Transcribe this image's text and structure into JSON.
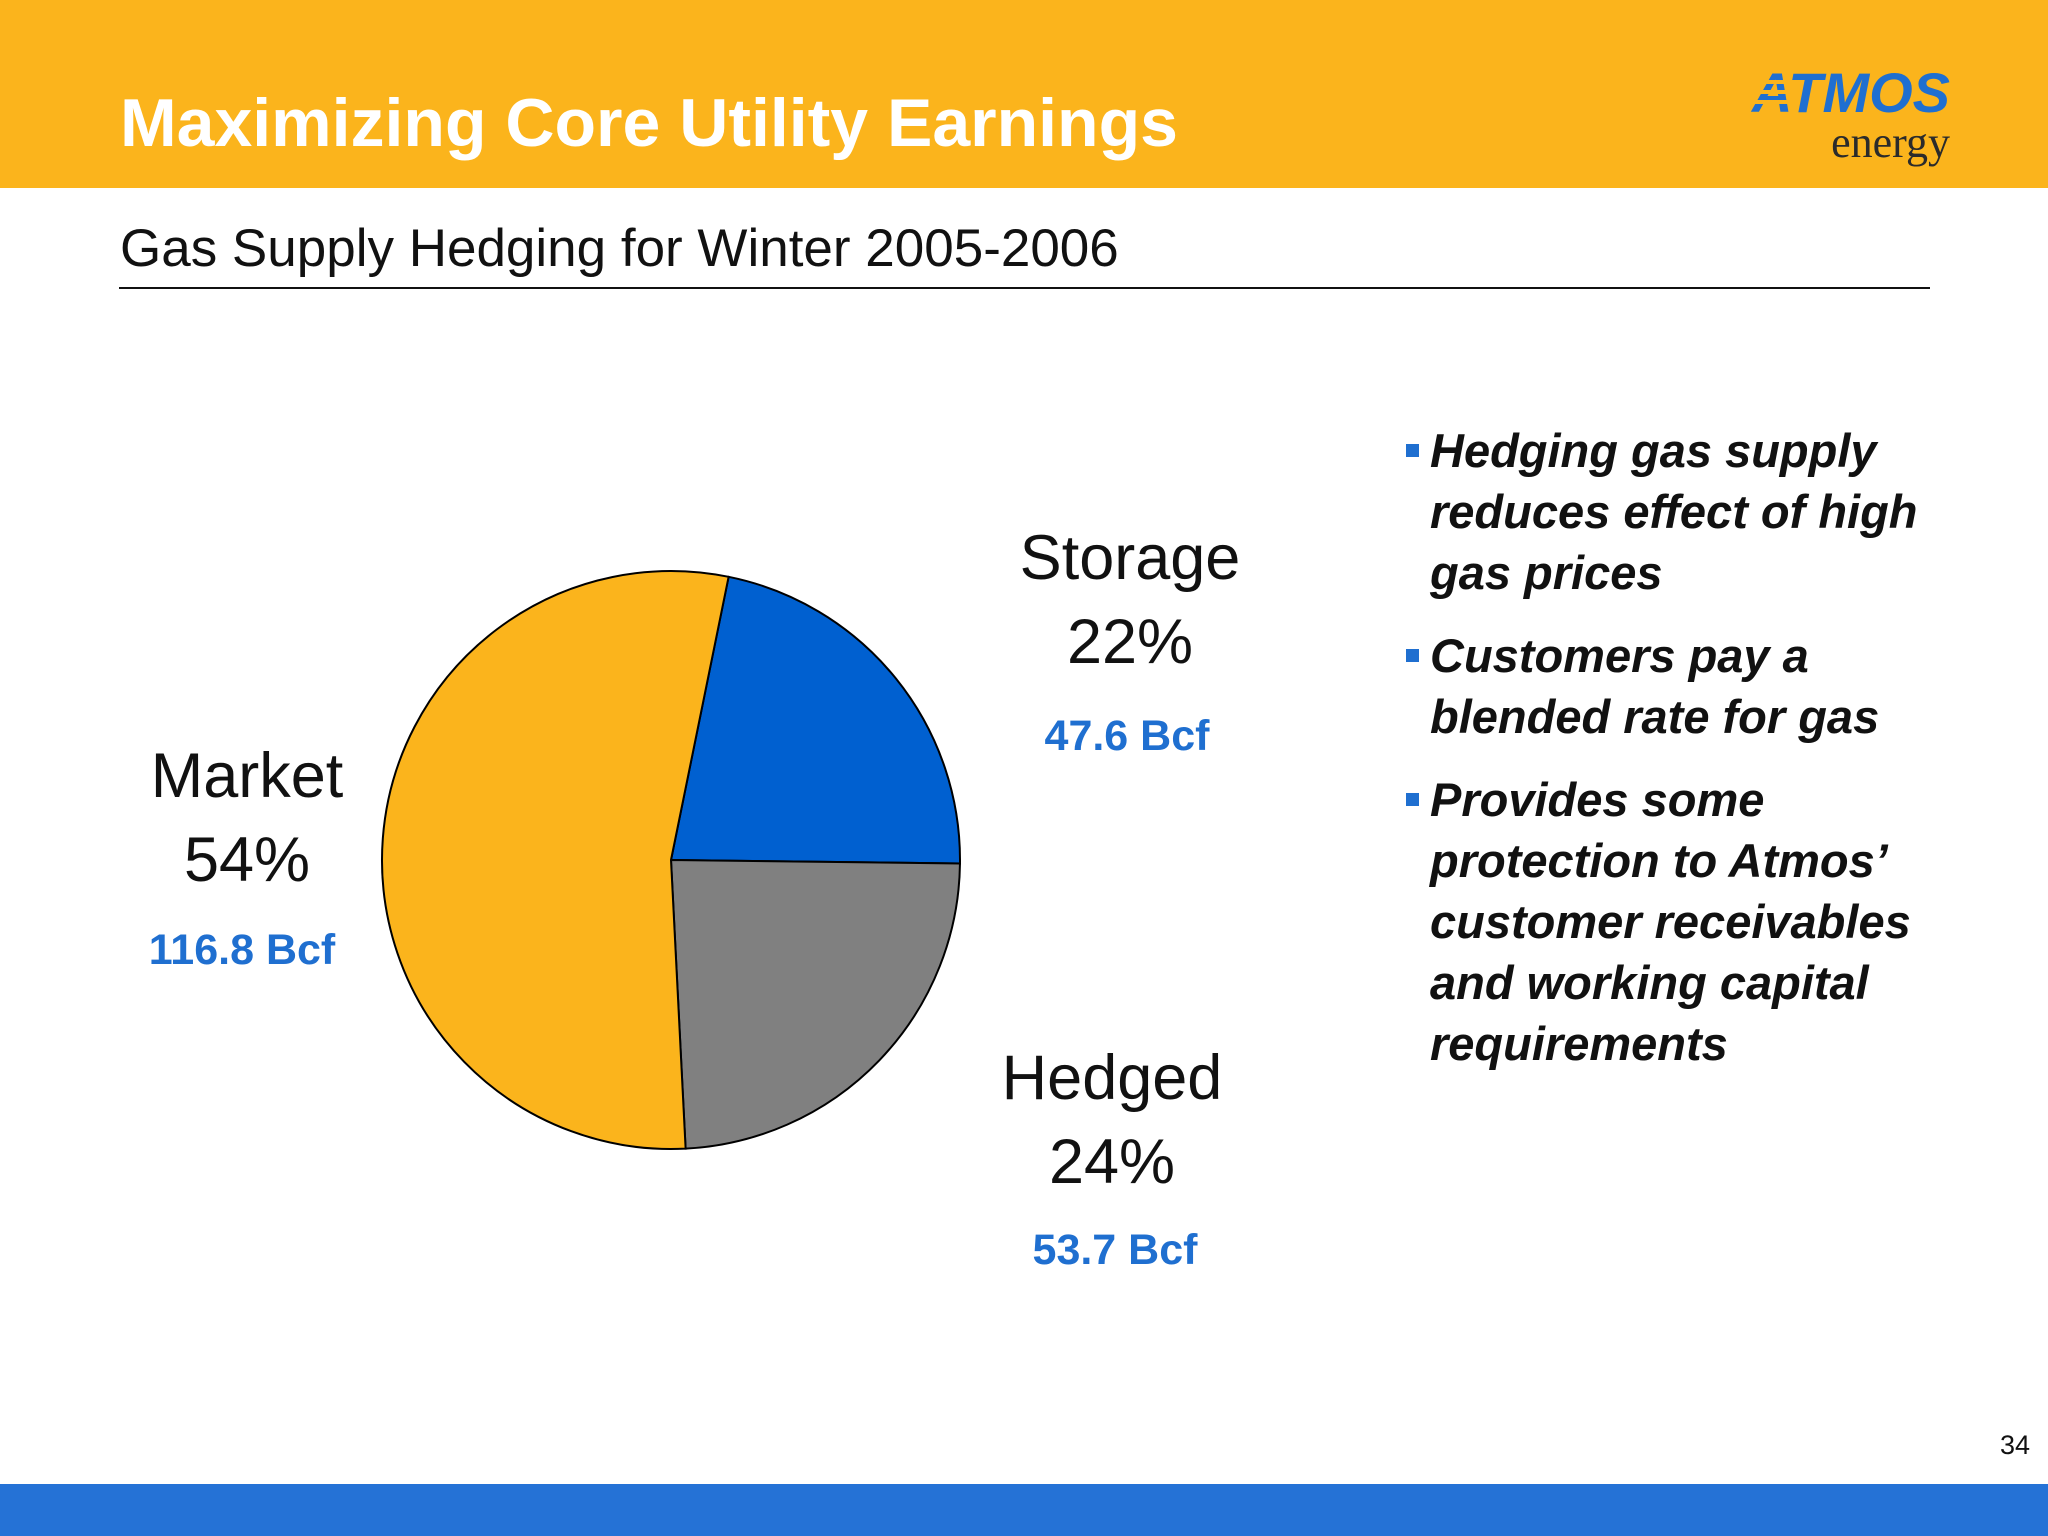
{
  "header": {
    "title": "Maximizing Core Utility Earnings",
    "logo": {
      "brand": "ATMOS",
      "sub": "energy",
      "brand_color": "#1F6FD0",
      "sub_color": "#2b2b2b"
    }
  },
  "subtitle": "Gas Supply Hedging for Winter 2005-2006",
  "colors": {
    "header_bg": "#FBB41C",
    "footer_bg": "#2572D6",
    "accent_blue": "#1F6FD0"
  },
  "chart_data": {
    "type": "pie",
    "title": "Gas Supply Hedging for Winter 2005-2006",
    "slices": [
      {
        "name": "Storage",
        "percent": 22,
        "percent_label": "22%",
        "volume": 47.6,
        "volume_label": "47.6 Bcf",
        "color": "#0060D0"
      },
      {
        "name": "Hedged",
        "percent": 24,
        "percent_label": "24%",
        "volume": 53.7,
        "volume_label": "53.7 Bcf",
        "color": "#808080"
      },
      {
        "name": "Market",
        "percent": 54,
        "percent_label": "54%",
        "volume": 116.8,
        "volume_label": "116.8 Bcf",
        "color": "#FBB41C"
      }
    ]
  },
  "bullets": [
    "Hedging gas supply reduces effect of high gas prices",
    "Customers pay a blended rate for gas",
    "Provides some protection to Atmos’ customer receivables and working capital requirements"
  ],
  "page_number": "34"
}
